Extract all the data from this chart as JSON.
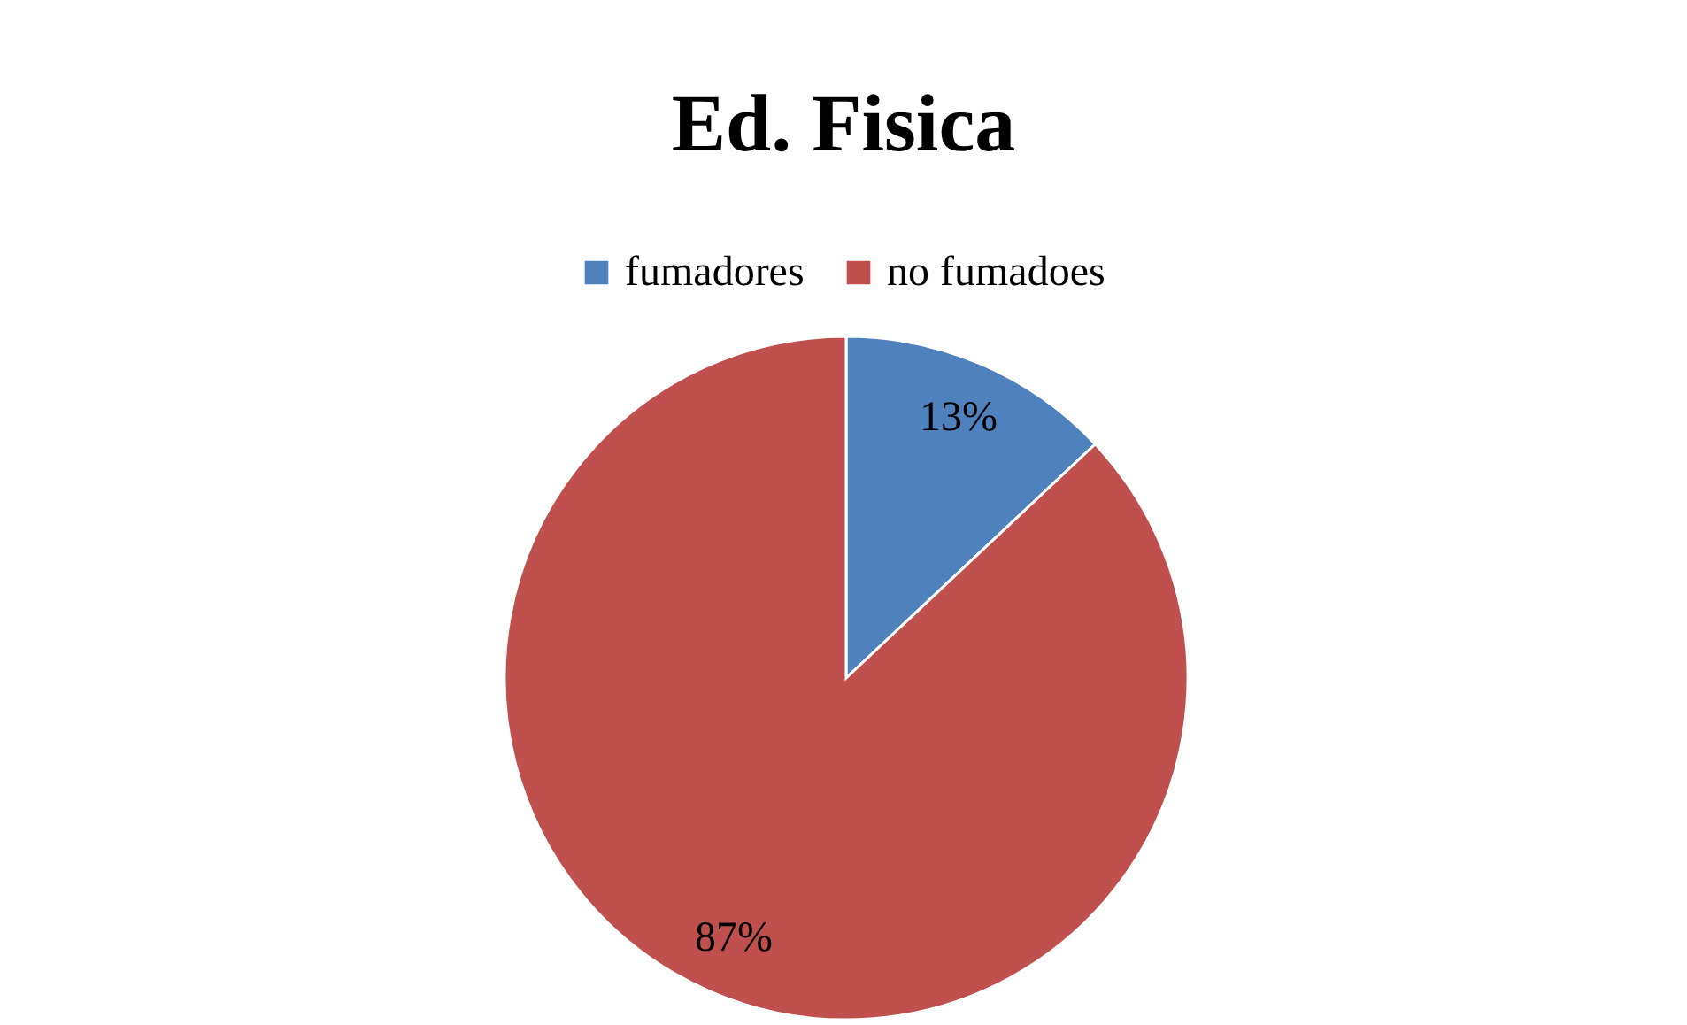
{
  "chart_data": {
    "type": "pie",
    "title": "Ed. Fisica",
    "categories": [
      "fumadores",
      "no fumadoes"
    ],
    "values": [
      13,
      87
    ],
    "value_labels": [
      "13%",
      "87%"
    ],
    "colors": [
      "#4f81bd",
      "#c0504d"
    ],
    "legend": "top"
  }
}
